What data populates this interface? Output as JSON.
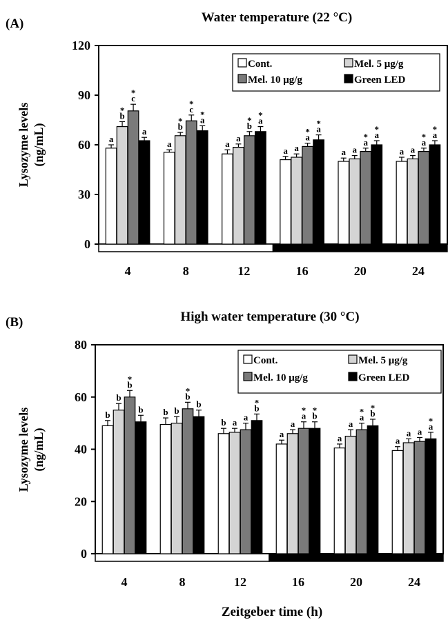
{
  "chart_data": [
    {
      "type": "bar",
      "panel_label": "(A)",
      "title": "Water temperature (22 °C)",
      "ylabel": "Lysozyme levels (ng/mL)",
      "ylabel_lines": [
        "Lysozyme levels",
        "(ng/mL)"
      ],
      "xlabel": "",
      "ylim": [
        0,
        120
      ],
      "yticks": [
        "0",
        "30",
        "60",
        "90",
        "120"
      ],
      "categories": [
        "4",
        "8",
        "12",
        "16",
        "20",
        "24"
      ],
      "legend": {
        "placement": "top-right"
      },
      "light_dark_bar": {
        "light_until_index": 2
      },
      "series": [
        {
          "name": "Cont.",
          "color": "#ffffff",
          "values": [
            58,
            55.5,
            54.5,
            51,
            50,
            50
          ],
          "errors": [
            2,
            1.5,
            2.5,
            2,
            2,
            2.5
          ],
          "labels": [
            [
              "a"
            ],
            [
              "a"
            ],
            [
              "a"
            ],
            [
              "a"
            ],
            [
              "a"
            ],
            [
              "a"
            ]
          ]
        },
        {
          "name": "Mel. 5 μg/g",
          "color": "#d4d4d4",
          "values": [
            71,
            65.5,
            58.5,
            52.5,
            51.5,
            51.5
          ],
          "errors": [
            3,
            2,
            2,
            2,
            2,
            2
          ],
          "labels": [
            [
              "*",
              "b"
            ],
            [
              "*",
              "b"
            ],
            [
              "a"
            ],
            [
              "a"
            ],
            [
              "a"
            ],
            [
              "a"
            ]
          ]
        },
        {
          "name": "Mel. 10 μg/g",
          "color": "#7a7a7a",
          "values": [
            80.5,
            74.5,
            65.5,
            59,
            56,
            56
          ],
          "errors": [
            4,
            3.5,
            2.5,
            2,
            2,
            2
          ],
          "labels": [
            [
              "*",
              "c"
            ],
            [
              "*",
              "c"
            ],
            [
              "*",
              "b"
            ],
            [
              "*",
              "a"
            ],
            [
              "*",
              "a"
            ],
            [
              "*",
              "a"
            ]
          ]
        },
        {
          "name": "Green LED",
          "color": "#000000",
          "values": [
            62.5,
            68.5,
            68,
            63,
            60,
            60
          ],
          "errors": [
            2,
            3,
            3,
            3,
            2.5,
            2.5
          ],
          "labels": [
            [
              "a"
            ],
            [
              "*",
              "a"
            ],
            [
              "*",
              "a"
            ],
            [
              "*",
              "a"
            ],
            [
              "*",
              "a"
            ],
            [
              "*",
              "a"
            ]
          ]
        }
      ]
    },
    {
      "type": "bar",
      "panel_label": "(B)",
      "title": "High water temperature (30 °C)",
      "ylabel": "Lysozyme levels (ng/mL)",
      "ylabel_lines": [
        "Lysozyme levels",
        "(ng/mL)"
      ],
      "xlabel": "Zeitgeber time (h)",
      "ylim": [
        0,
        80
      ],
      "yticks": [
        "0",
        "20",
        "40",
        "60",
        "80"
      ],
      "categories": [
        "4",
        "8",
        "12",
        "16",
        "20",
        "24"
      ],
      "legend": {
        "placement": "top-right"
      },
      "light_dark_bar": {
        "light_until_index": 2
      },
      "series": [
        {
          "name": "Cont.",
          "color": "#ffffff",
          "values": [
            49,
            49.5,
            46,
            42,
            40.5,
            39.5
          ],
          "errors": [
            2,
            2.5,
            2,
            1.5,
            1.5,
            1.5
          ],
          "labels": [
            [
              "b"
            ],
            [
              "b"
            ],
            [
              "b"
            ],
            [
              "a"
            ],
            [
              "a"
            ],
            [
              "a"
            ]
          ]
        },
        {
          "name": "Mel. 5 μg/g",
          "color": "#d4d4d4",
          "values": [
            55,
            50,
            46.5,
            46,
            45,
            42.5
          ],
          "errors": [
            2.5,
            2.5,
            1.5,
            1.5,
            2.5,
            1.5
          ],
          "labels": [
            [
              "b"
            ],
            [
              "b"
            ],
            [
              "a"
            ],
            [
              "a"
            ],
            [
              "a"
            ],
            [
              "a"
            ]
          ]
        },
        {
          "name": "Mel. 10 μg/g",
          "color": "#7a7a7a",
          "values": [
            60,
            55.5,
            47.5,
            48,
            47.5,
            43
          ],
          "errors": [
            2.5,
            2.5,
            2.5,
            2.5,
            2.5,
            1.5
          ],
          "labels": [
            [
              "*",
              "b"
            ],
            [
              "*",
              "b"
            ],
            [
              "a"
            ],
            [
              "*",
              "a"
            ],
            [
              "*",
              "a"
            ],
            [
              "a"
            ]
          ]
        },
        {
          "name": "Green LED",
          "color": "#000000",
          "values": [
            50.5,
            52.5,
            51,
            48,
            49,
            44
          ],
          "errors": [
            2.5,
            2.5,
            2.5,
            2.5,
            2.5,
            2.5
          ],
          "labels": [
            [
              "b"
            ],
            [
              "b"
            ],
            [
              "*",
              "b"
            ],
            [
              "*",
              "b"
            ],
            [
              "*",
              "b"
            ],
            [
              "*",
              "a"
            ]
          ]
        }
      ]
    }
  ]
}
